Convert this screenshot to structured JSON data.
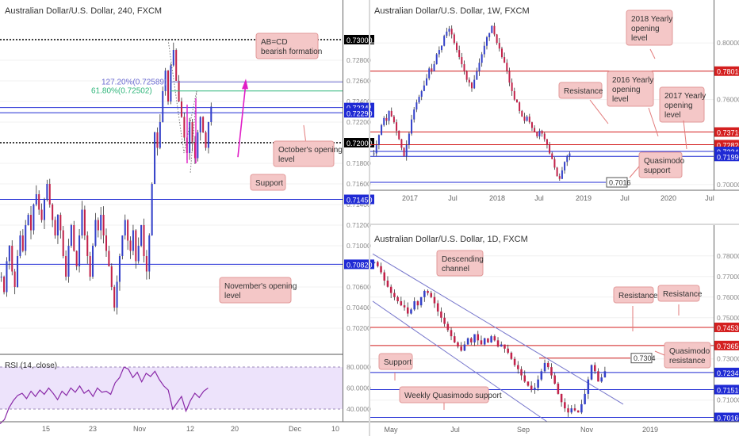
{
  "chart_data": [
    {
      "type": "candlestick",
      "title": "Australian Dollar/U.S. Dollar, 240, FXCM",
      "ylim": [
        0.7,
        0.732
      ],
      "price_labels": [
        "0.73000",
        "0.72800",
        "0.72600",
        "0.72400",
        "0.72200",
        "0.72000",
        "0.71800",
        "0.71600",
        "0.71400",
        "0.71200",
        "0.71000",
        "0.70800",
        "0.70600",
        "0.70400",
        "0.70200"
      ],
      "x_ticks": [
        "15",
        "23",
        "Nov",
        "12",
        "20",
        "Dec",
        "10"
      ],
      "levels": [
        {
          "label": "0.73000",
          "value": 0.73,
          "color": "#000000"
        },
        {
          "label": "0.72341",
          "value": 0.72341,
          "color": "#1f2ad4"
        },
        {
          "label": "0.72290",
          "value": 0.7229,
          "color": "#1f2ad4"
        },
        {
          "label": "0.72000",
          "value": 0.72,
          "color": "#000000"
        },
        {
          "label": "0.71450",
          "value": 0.7145,
          "color": "#1f2ad4"
        },
        {
          "label": "0.70820",
          "value": 0.7082,
          "color": "#1f2ad4"
        }
      ],
      "fib_labels": [
        "127.20%(0.72589)",
        "61.80%(0.72502)"
      ],
      "annotations": [
        "AB=CD bearish formation",
        "October's opening level",
        "Support",
        "November's opening level"
      ],
      "rsi": {
        "title": "RSI (14, close)",
        "price_labels": [
          "80.0000",
          "60.0000",
          "40.0000"
        ],
        "values": [
          26,
          30,
          41,
          48,
          53,
          55,
          50,
          57,
          52,
          58,
          54,
          60,
          55,
          49,
          57,
          53,
          60,
          56,
          62,
          55,
          58,
          52,
          60,
          56,
          57,
          54,
          65,
          70,
          80,
          78,
          70,
          75,
          66,
          74,
          71,
          76,
          68,
          62,
          58,
          40,
          46,
          52,
          38,
          48,
          55,
          51,
          57,
          60
        ]
      }
    },
    {
      "type": "candlestick",
      "title": "Australian Dollar/U.S. Dollar, 1W, FXCM",
      "ylim": [
        0.696,
        0.818
      ],
      "price_labels": [
        "0.80000",
        "0.78010",
        "0.76000",
        "0.73710",
        "0.72820",
        "0.72341",
        "0.71990",
        "0.70000"
      ],
      "x_ticks": [
        "2017",
        "Jul",
        "2018",
        "Jul",
        "2019",
        "Jul",
        "2020",
        "Jul"
      ],
      "levels": [
        {
          "label": "0.78010",
          "value": 0.7801,
          "color": "#d41f1f"
        },
        {
          "label": "0.73710",
          "value": 0.7371,
          "color": "#d41f1f"
        },
        {
          "label": "0.72820",
          "value": 0.7282,
          "color": "#d41f1f"
        },
        {
          "label": "0.72341",
          "value": 0.72341,
          "color": "#1f2ad4"
        },
        {
          "label": "0.71990",
          "value": 0.7199,
          "color": "#1f2ad4"
        }
      ],
      "support_label": "0.7016",
      "annotations": [
        "2018 Yearly opening level",
        "Resistance",
        "2016 Yearly opening level",
        "2017 Yearly opening level",
        "Quasimodo support"
      ],
      "closes": [
        0.722,
        0.728,
        0.735,
        0.742,
        0.747,
        0.745,
        0.752,
        0.748,
        0.744,
        0.738,
        0.732,
        0.726,
        0.72,
        0.728,
        0.736,
        0.746,
        0.753,
        0.758,
        0.762,
        0.766,
        0.77,
        0.775,
        0.782,
        0.78,
        0.785,
        0.792,
        0.795,
        0.798,
        0.805,
        0.808,
        0.81,
        0.806,
        0.8,
        0.795,
        0.79,
        0.785,
        0.78,
        0.774,
        0.772,
        0.768,
        0.774,
        0.78,
        0.786,
        0.792,
        0.798,
        0.804,
        0.807,
        0.812,
        0.806,
        0.8,
        0.796,
        0.79,
        0.786,
        0.78,
        0.772,
        0.766,
        0.76,
        0.758,
        0.752,
        0.748,
        0.745,
        0.748,
        0.744,
        0.74,
        0.737,
        0.734,
        0.738,
        0.736,
        0.732,
        0.728,
        0.722,
        0.718,
        0.712,
        0.706,
        0.704,
        0.71,
        0.716,
        0.72,
        0.722
      ]
    },
    {
      "type": "candlestick",
      "title": "Australian Dollar/U.S. Dollar, 1D, FXCM",
      "ylim": [
        0.6995,
        0.788
      ],
      "price_labels": [
        "0.78000",
        "0.77000",
        "0.76000",
        "0.75000",
        "0.74530",
        "0.73650",
        "0.73000",
        "0.72341",
        "0.71510",
        "0.71000",
        "0.70160"
      ],
      "x_ticks": [
        "May",
        "Jul",
        "Sep",
        "Nov",
        "2019"
      ],
      "levels": [
        {
          "label": "0.74530",
          "value": 0.7453,
          "color": "#d41f1f"
        },
        {
          "label": "0.73650",
          "value": 0.7365,
          "color": "#d41f1f"
        },
        {
          "label": "0.72341",
          "value": 0.72341,
          "color": "#1f2ad4"
        },
        {
          "label": "0.71510",
          "value": 0.7151,
          "color": "#1f2ad4"
        },
        {
          "label": "0.70160",
          "value": 0.7016,
          "color": "#1f2ad4"
        }
      ],
      "quasimodo_label": "0.7304",
      "annotations": [
        "Descending channel",
        "Resistance",
        "Resistance",
        "Quasimodo resistance",
        "Support",
        "Weekly Quasimodo support"
      ],
      "closes": [
        0.777,
        0.775,
        0.772,
        0.768,
        0.765,
        0.762,
        0.76,
        0.758,
        0.756,
        0.755,
        0.752,
        0.754,
        0.758,
        0.756,
        0.76,
        0.763,
        0.762,
        0.76,
        0.757,
        0.753,
        0.75,
        0.747,
        0.744,
        0.741,
        0.738,
        0.736,
        0.734,
        0.737,
        0.74,
        0.738,
        0.742,
        0.739,
        0.737,
        0.74,
        0.738,
        0.741,
        0.739,
        0.736,
        0.737,
        0.735,
        0.733,
        0.73,
        0.727,
        0.725,
        0.722,
        0.719,
        0.717,
        0.715,
        0.716,
        0.72,
        0.724,
        0.728,
        0.726,
        0.722,
        0.718,
        0.713,
        0.709,
        0.706,
        0.704,
        0.706,
        0.705,
        0.704,
        0.708,
        0.713,
        0.72,
        0.727,
        0.724,
        0.719,
        0.721,
        0.724
      ]
    }
  ]
}
